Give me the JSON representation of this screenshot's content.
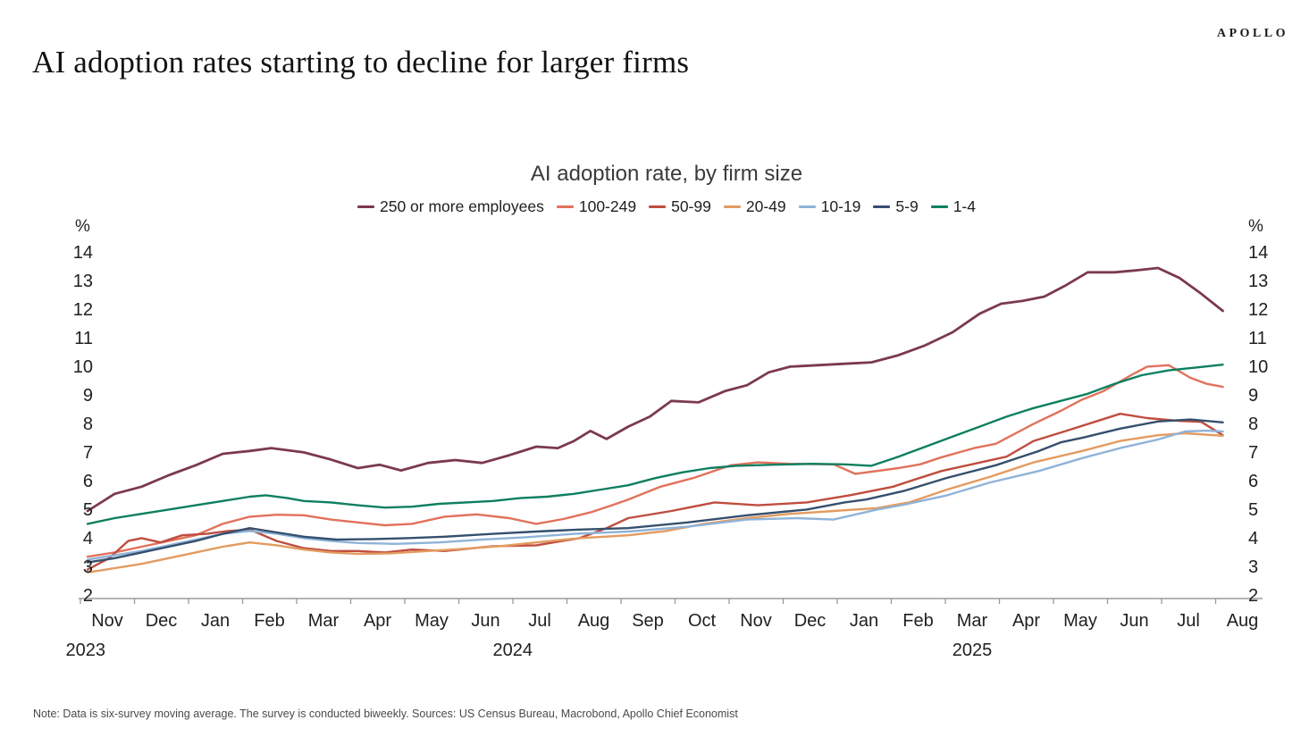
{
  "brand": {
    "logo_text": "APOLLO"
  },
  "page_title": "AI adoption rates starting to decline for larger firms",
  "note": "Note: Data is six-survey moving average. The survey is conducted biweekly. Sources: US Census Bureau, Macrobond, Apollo Chief Economist",
  "chart_data": {
    "type": "line",
    "title": "AI adoption rate, by firm size",
    "y_unit_label": "%",
    "ylim": [
      2,
      14
    ],
    "y_ticks": [
      14,
      13,
      12,
      11,
      10,
      9,
      8,
      7,
      6,
      5,
      4,
      3,
      2
    ],
    "grid": false,
    "legend_position": "top",
    "x_axis_note": "x in fractional months, 0 = Nov 2023, 21 = Aug 2025",
    "x_months": [
      "Nov",
      "Dec",
      "Jan",
      "Feb",
      "Mar",
      "Apr",
      "May",
      "Jun",
      "Jul",
      "Aug",
      "Sep",
      "Oct",
      "Nov",
      "Dec",
      "Jan",
      "Feb",
      "Mar",
      "Apr",
      "May",
      "Jun",
      "Jul",
      "Aug"
    ],
    "x_years": [
      {
        "label": "2023",
        "position": -0.4
      },
      {
        "label": "2024",
        "position": 7.5
      },
      {
        "label": "2025",
        "position": 16.0
      }
    ],
    "axis_color": "#a9a9a9",
    "series": [
      {
        "name": "250 or more employees",
        "color": "#7b3a4c",
        "width": 2.8,
        "points": [
          [
            0,
            5.0
          ],
          [
            0.5,
            5.6
          ],
          [
            1,
            5.85
          ],
          [
            1.5,
            6.25
          ],
          [
            2,
            6.6
          ],
          [
            2.5,
            7.0
          ],
          [
            3,
            7.1
          ],
          [
            3.4,
            7.2
          ],
          [
            4,
            7.05
          ],
          [
            4.5,
            6.8
          ],
          [
            5,
            6.5
          ],
          [
            5.4,
            6.62
          ],
          [
            5.8,
            6.42
          ],
          [
            6.3,
            6.68
          ],
          [
            6.8,
            6.78
          ],
          [
            7.3,
            6.68
          ],
          [
            7.8,
            6.95
          ],
          [
            8.3,
            7.25
          ],
          [
            8.7,
            7.2
          ],
          [
            9,
            7.45
          ],
          [
            9.3,
            7.8
          ],
          [
            9.6,
            7.52
          ],
          [
            10,
            7.95
          ],
          [
            10.4,
            8.3
          ],
          [
            10.8,
            8.85
          ],
          [
            11.3,
            8.8
          ],
          [
            11.8,
            9.2
          ],
          [
            12.2,
            9.4
          ],
          [
            12.6,
            9.85
          ],
          [
            13,
            10.05
          ],
          [
            13.5,
            10.1
          ],
          [
            14,
            10.15
          ],
          [
            14.5,
            10.2
          ],
          [
            15,
            10.45
          ],
          [
            15.5,
            10.8
          ],
          [
            16,
            11.25
          ],
          [
            16.5,
            11.9
          ],
          [
            16.9,
            12.25
          ],
          [
            17.3,
            12.35
          ],
          [
            17.7,
            12.5
          ],
          [
            18.1,
            12.9
          ],
          [
            18.5,
            13.35
          ],
          [
            19,
            13.35
          ],
          [
            19.4,
            13.42
          ],
          [
            19.8,
            13.5
          ],
          [
            20.2,
            13.15
          ],
          [
            20.6,
            12.6
          ],
          [
            21,
            12.0
          ]
        ]
      },
      {
        "name": "100-249",
        "color": "#e2715c",
        "width": 2.4,
        "points": [
          [
            0,
            3.4
          ],
          [
            0.5,
            3.55
          ],
          [
            1,
            3.75
          ],
          [
            1.5,
            3.95
          ],
          [
            2,
            4.15
          ],
          [
            2.5,
            4.55
          ],
          [
            3,
            4.8
          ],
          [
            3.5,
            4.87
          ],
          [
            4,
            4.85
          ],
          [
            4.5,
            4.7
          ],
          [
            5,
            4.6
          ],
          [
            5.5,
            4.5
          ],
          [
            6,
            4.55
          ],
          [
            6.6,
            4.8
          ],
          [
            7.2,
            4.88
          ],
          [
            7.8,
            4.75
          ],
          [
            8.3,
            4.55
          ],
          [
            8.8,
            4.72
          ],
          [
            9.3,
            4.95
          ],
          [
            9.7,
            5.2
          ],
          [
            10,
            5.4
          ],
          [
            10.6,
            5.85
          ],
          [
            11.2,
            6.15
          ],
          [
            11.9,
            6.6
          ],
          [
            12.4,
            6.7
          ],
          [
            13,
            6.65
          ],
          [
            13.8,
            6.63
          ],
          [
            14.2,
            6.3
          ],
          [
            15,
            6.5
          ],
          [
            15.4,
            6.63
          ],
          [
            15.8,
            6.88
          ],
          [
            16.4,
            7.2
          ],
          [
            16.8,
            7.35
          ],
          [
            17.1,
            7.65
          ],
          [
            17.5,
            8.05
          ],
          [
            18,
            8.5
          ],
          [
            18.4,
            8.9
          ],
          [
            18.8,
            9.2
          ],
          [
            19.3,
            9.75
          ],
          [
            19.6,
            10.05
          ],
          [
            20,
            10.1
          ],
          [
            20.4,
            9.66
          ],
          [
            20.7,
            9.45
          ],
          [
            21,
            9.34
          ]
        ]
      },
      {
        "name": "50-99",
        "color": "#bf4d3f",
        "width": 2.4,
        "points": [
          [
            0,
            2.95
          ],
          [
            0.4,
            3.35
          ],
          [
            0.75,
            3.95
          ],
          [
            1,
            4.05
          ],
          [
            1.35,
            3.9
          ],
          [
            1.75,
            4.15
          ],
          [
            2.2,
            4.2
          ],
          [
            2.6,
            4.3
          ],
          [
            3,
            4.35
          ],
          [
            3.5,
            3.95
          ],
          [
            4,
            3.7
          ],
          [
            4.5,
            3.6
          ],
          [
            5,
            3.6
          ],
          [
            5.5,
            3.55
          ],
          [
            6,
            3.65
          ],
          [
            6.6,
            3.6
          ],
          [
            7.5,
            3.77
          ],
          [
            8.3,
            3.8
          ],
          [
            9.1,
            4.05
          ],
          [
            9.6,
            4.4
          ],
          [
            10,
            4.75
          ],
          [
            10.8,
            5.0
          ],
          [
            11.6,
            5.3
          ],
          [
            12.4,
            5.2
          ],
          [
            13.3,
            5.3
          ],
          [
            14.1,
            5.55
          ],
          [
            14.9,
            5.85
          ],
          [
            15.3,
            6.1
          ],
          [
            15.8,
            6.4
          ],
          [
            16.4,
            6.65
          ],
          [
            17,
            6.9
          ],
          [
            17.5,
            7.45
          ],
          [
            18.1,
            7.8
          ],
          [
            18.6,
            8.1
          ],
          [
            19.1,
            8.4
          ],
          [
            19.6,
            8.25
          ],
          [
            20.2,
            8.15
          ],
          [
            20.6,
            8.12
          ],
          [
            21,
            7.65
          ]
        ]
      },
      {
        "name": "20-49",
        "color": "#e39b60",
        "width": 2.4,
        "points": [
          [
            0,
            2.85
          ],
          [
            0.5,
            3.0
          ],
          [
            1,
            3.15
          ],
          [
            1.5,
            3.35
          ],
          [
            2,
            3.55
          ],
          [
            2.5,
            3.75
          ],
          [
            3,
            3.9
          ],
          [
            3.5,
            3.8
          ],
          [
            4,
            3.65
          ],
          [
            4.5,
            3.55
          ],
          [
            5,
            3.5
          ],
          [
            5.6,
            3.52
          ],
          [
            6.3,
            3.6
          ],
          [
            7,
            3.68
          ],
          [
            7.7,
            3.78
          ],
          [
            8.3,
            3.9
          ],
          [
            9.1,
            4.05
          ],
          [
            10,
            4.15
          ],
          [
            10.7,
            4.3
          ],
          [
            11.4,
            4.55
          ],
          [
            12.2,
            4.75
          ],
          [
            13,
            4.9
          ],
          [
            13.8,
            5.0
          ],
          [
            14.6,
            5.1
          ],
          [
            15.2,
            5.3
          ],
          [
            15.9,
            5.75
          ],
          [
            16.7,
            6.2
          ],
          [
            17.5,
            6.7
          ],
          [
            18.4,
            7.1
          ],
          [
            19.1,
            7.45
          ],
          [
            19.8,
            7.65
          ],
          [
            20.3,
            7.72
          ],
          [
            21,
            7.63
          ]
        ]
      },
      {
        "name": "10-19",
        "color": "#8fb3d8",
        "width": 2.4,
        "points": [
          [
            0,
            3.3
          ],
          [
            0.5,
            3.45
          ],
          [
            1,
            3.6
          ],
          [
            1.5,
            3.8
          ],
          [
            2,
            4.0
          ],
          [
            2.5,
            4.2
          ],
          [
            3,
            4.3
          ],
          [
            3.5,
            4.2
          ],
          [
            4,
            4.05
          ],
          [
            4.5,
            3.95
          ],
          [
            5,
            3.88
          ],
          [
            5.7,
            3.85
          ],
          [
            6.5,
            3.9
          ],
          [
            7.3,
            4.0
          ],
          [
            8.1,
            4.08
          ],
          [
            9,
            4.2
          ],
          [
            10,
            4.28
          ],
          [
            11.1,
            4.45
          ],
          [
            12.2,
            4.7
          ],
          [
            13.1,
            4.75
          ],
          [
            13.8,
            4.7
          ],
          [
            14.6,
            5.05
          ],
          [
            15.1,
            5.22
          ],
          [
            15.9,
            5.55
          ],
          [
            16.7,
            6.0
          ],
          [
            17.6,
            6.4
          ],
          [
            18.4,
            6.85
          ],
          [
            19.1,
            7.2
          ],
          [
            19.8,
            7.5
          ],
          [
            20.3,
            7.78
          ],
          [
            20.7,
            7.81
          ],
          [
            21,
            7.78
          ]
        ]
      },
      {
        "name": "5-9",
        "color": "#35506e",
        "width": 2.4,
        "points": [
          [
            0,
            3.2
          ],
          [
            0.5,
            3.35
          ],
          [
            1,
            3.55
          ],
          [
            1.5,
            3.75
          ],
          [
            2,
            3.95
          ],
          [
            2.5,
            4.2
          ],
          [
            3,
            4.4
          ],
          [
            3.5,
            4.25
          ],
          [
            4,
            4.1
          ],
          [
            4.6,
            4.0
          ],
          [
            5.3,
            4.02
          ],
          [
            5.9,
            4.05
          ],
          [
            6.6,
            4.1
          ],
          [
            7.5,
            4.2
          ],
          [
            8.3,
            4.28
          ],
          [
            9.1,
            4.35
          ],
          [
            10,
            4.4
          ],
          [
            11.1,
            4.6
          ],
          [
            12.2,
            4.85
          ],
          [
            13.3,
            5.05
          ],
          [
            14,
            5.3
          ],
          [
            14.4,
            5.4
          ],
          [
            15.1,
            5.7
          ],
          [
            15.9,
            6.16
          ],
          [
            16.8,
            6.6
          ],
          [
            17.6,
            7.1
          ],
          [
            18,
            7.4
          ],
          [
            18.4,
            7.56
          ],
          [
            19.1,
            7.88
          ],
          [
            19.8,
            8.13
          ],
          [
            20.4,
            8.2
          ],
          [
            21,
            8.1
          ]
        ]
      },
      {
        "name": "1-4",
        "color": "#0e7f60",
        "width": 2.4,
        "points": [
          [
            0,
            4.55
          ],
          [
            0.5,
            4.75
          ],
          [
            1,
            4.9
          ],
          [
            1.5,
            5.05
          ],
          [
            2,
            5.2
          ],
          [
            2.5,
            5.35
          ],
          [
            3,
            5.5
          ],
          [
            3.3,
            5.55
          ],
          [
            3.7,
            5.45
          ],
          [
            4,
            5.35
          ],
          [
            4.5,
            5.3
          ],
          [
            5,
            5.2
          ],
          [
            5.5,
            5.12
          ],
          [
            6,
            5.15
          ],
          [
            6.5,
            5.25
          ],
          [
            7,
            5.3
          ],
          [
            7.5,
            5.35
          ],
          [
            8,
            5.45
          ],
          [
            8.5,
            5.5
          ],
          [
            9,
            5.6
          ],
          [
            9.5,
            5.75
          ],
          [
            10,
            5.9
          ],
          [
            10.5,
            6.15
          ],
          [
            11,
            6.35
          ],
          [
            11.5,
            6.5
          ],
          [
            12,
            6.58
          ],
          [
            12.7,
            6.62
          ],
          [
            13.4,
            6.65
          ],
          [
            14,
            6.63
          ],
          [
            14.5,
            6.58
          ],
          [
            15,
            6.9
          ],
          [
            15.5,
            7.25
          ],
          [
            16,
            7.6
          ],
          [
            16.5,
            7.95
          ],
          [
            17,
            8.3
          ],
          [
            17.5,
            8.6
          ],
          [
            18,
            8.85
          ],
          [
            18.5,
            9.1
          ],
          [
            19,
            9.45
          ],
          [
            19.5,
            9.75
          ],
          [
            20,
            9.92
          ],
          [
            20.5,
            10.02
          ],
          [
            21,
            10.12
          ]
        ]
      }
    ]
  }
}
